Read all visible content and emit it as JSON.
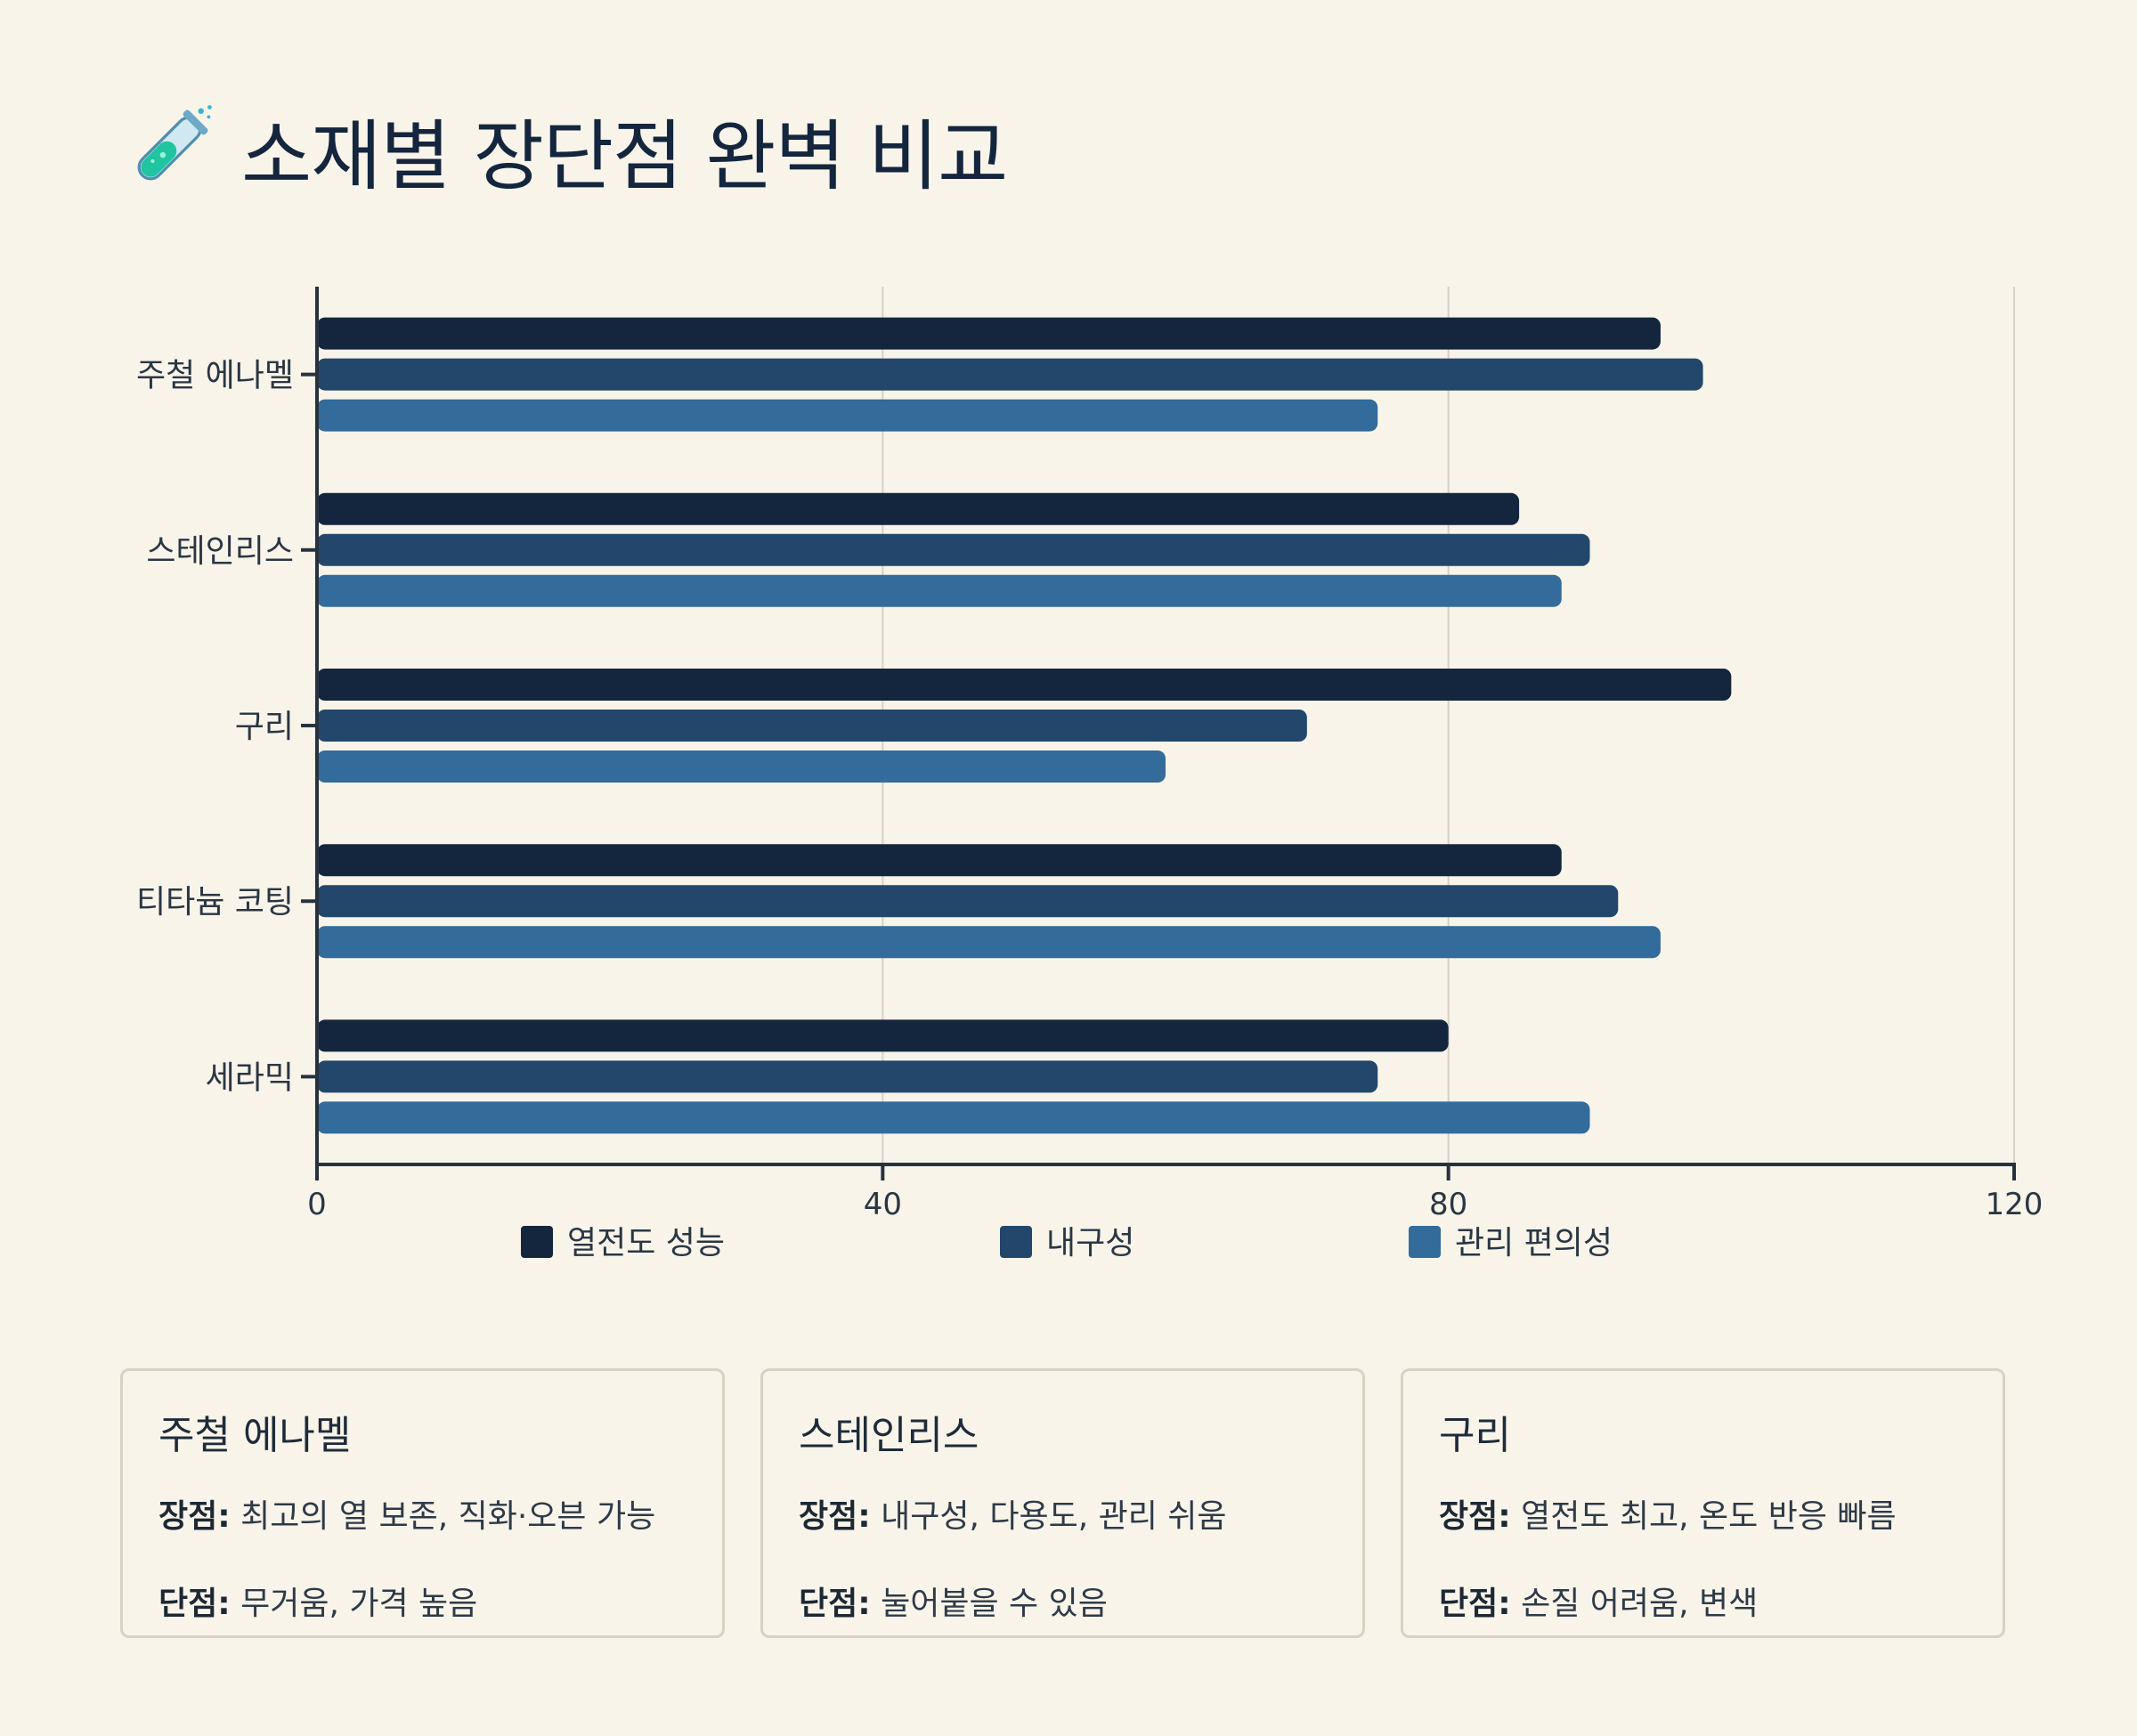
{
  "title": "소재별 장단점 완벽 비교",
  "title_icon": "test-tube-icon",
  "chart_data": {
    "type": "bar",
    "orientation": "horizontal",
    "categories": [
      "주철 에나멜",
      "스테인리스",
      "구리",
      "티타늄 코팅",
      "세라믹"
    ],
    "series": [
      {
        "name": "열전도 성능",
        "color": "#14263d",
        "values": [
          95,
          85,
          100,
          88,
          80
        ]
      },
      {
        "name": "내구성",
        "color": "#22476b",
        "values": [
          98,
          90,
          70,
          92,
          75
        ]
      },
      {
        "name": "관리 편의성",
        "color": "#336b9b",
        "values": [
          75,
          88,
          60,
          95,
          90
        ]
      }
    ],
    "xlim": [
      0,
      120
    ],
    "xticks": [
      "0",
      "40",
      "80",
      "120"
    ],
    "grid": true,
    "legend": "bottom"
  },
  "cards": [
    {
      "title": "주철 에나멜",
      "pros_label": "장점:",
      "pros": "최고의 열 보존, 직화·오븐 가능",
      "cons_label": "단점:",
      "cons": "무거움, 가격 높음"
    },
    {
      "title": "스테인리스",
      "pros_label": "장점:",
      "pros": "내구성, 다용도, 관리 쉬움",
      "cons_label": "단점:",
      "cons": "눌어붙을 수 있음"
    },
    {
      "title": "구리",
      "pros_label": "장점:",
      "pros": "열전도 최고, 온도 반응 빠름",
      "cons_label": "단점:",
      "cons": "손질 어려움, 변색"
    }
  ]
}
